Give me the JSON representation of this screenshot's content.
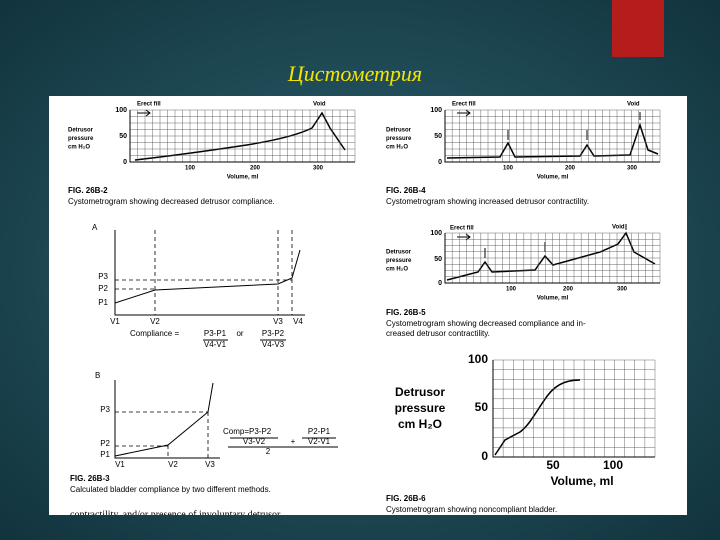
{
  "title": "Цистометрия",
  "fig_26b2": {
    "axis_label_lines": [
      "Detrusor",
      "pressure",
      "cm H₂O"
    ],
    "yticks": [
      100,
      50,
      0
    ],
    "xticks": [
      100,
      200,
      300
    ],
    "xlabel": "Volume, ml",
    "erect": "Erect fill",
    "void": "Void",
    "fig": "FIG. 26B-2",
    "caption": "Cystometrogram showing decreased detrusor compliance."
  },
  "fig_26b4": {
    "axis_label_lines": [
      "Detrusor",
      "pressure",
      "cm H₂O"
    ],
    "yticks": [
      100,
      50,
      0
    ],
    "xticks": [
      100,
      200,
      300
    ],
    "xlabel": "Volume, ml",
    "erect": "Erect fill",
    "void": "Void",
    "fig": "FIG. 26B-4",
    "caption": "Cystometrogram showing increased detrusor contractility."
  },
  "fig_26b5": {
    "axis_label_lines": [
      "Detrusor",
      "pressure",
      "cm H₂O"
    ],
    "yticks": [
      100,
      50,
      0
    ],
    "xticks": [
      100,
      200,
      300
    ],
    "xlabel": "Volume, ml",
    "erect": "Erect fill",
    "void": "Void",
    "fig": "FIG. 26B-5",
    "caption_lines": [
      "Cystometrogram showing decreased compliance and in-",
      "creased detrusor contractility."
    ]
  },
  "fig_26b6": {
    "axis_label_lines": [
      "Detrusor",
      "pressure",
      "cm H₂O"
    ],
    "yticks": [
      100,
      50,
      0
    ],
    "xticks": [
      50,
      100
    ],
    "xlabel": "Volume, ml",
    "fig": "FIG. 26B-6",
    "caption": "Cystometrogram showing noncompliant bladder."
  },
  "fig_a": {
    "letter": "A",
    "p": [
      "P3",
      "P2",
      "P1"
    ],
    "v": [
      "V1",
      "V2",
      "V3",
      "V4"
    ],
    "formula": {
      "lead": "Compliance =",
      "num1": "P3-P1",
      "den1": "V4-V1",
      "or": "or",
      "num2": "P3-P2",
      "den2": "V4-V3"
    }
  },
  "fig_b": {
    "letter": "B",
    "p": [
      "P3",
      "P2",
      "P1"
    ],
    "v": [
      "V1",
      "V2",
      "V3"
    ],
    "formula": {
      "lead": "Comp=P3-P2",
      "num2": "P2-P1",
      "den1": "V3-V2",
      "plus": "+",
      "den2": "V2-V1",
      "div": "2"
    }
  },
  "fig_26b3": {
    "fig": "FIG. 26B-3",
    "caption": "Calculated bladder compliance by two different methods."
  },
  "footer_text": "contractility, and/or presence of involuntary detrusor"
}
